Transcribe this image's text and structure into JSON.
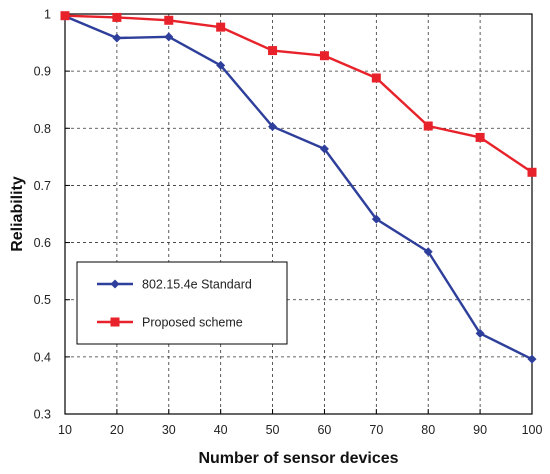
{
  "chart_data": {
    "type": "line",
    "xlabel": "Number of sensor devices",
    "ylabel": "Reliability",
    "x": [
      10,
      20,
      30,
      40,
      50,
      60,
      70,
      80,
      90,
      100
    ],
    "xlim": [
      10,
      100
    ],
    "ylim": [
      0.3,
      1
    ],
    "xticks": [
      "10",
      "20",
      "30",
      "40",
      "50",
      "60",
      "70",
      "80",
      "90",
      "100"
    ],
    "yticks": [
      "0.3",
      "0.4",
      "0.5",
      "0.6",
      "0.7",
      "0.8",
      "0.9",
      "1"
    ],
    "grid": true,
    "legend_position": "lower-left",
    "series": [
      {
        "name": "802.15.4e Standard",
        "color": "#2e3f9b",
        "marker": "diamond",
        "values": [
          0.996,
          0.958,
          0.96,
          0.91,
          0.803,
          0.764,
          0.641,
          0.584,
          0.441,
          0.396
        ]
      },
      {
        "name": "Proposed scheme",
        "color": "#e8222a",
        "marker": "square",
        "values": [
          0.997,
          0.994,
          0.989,
          0.977,
          0.936,
          0.927,
          0.888,
          0.804,
          0.784,
          0.723
        ]
      }
    ]
  }
}
